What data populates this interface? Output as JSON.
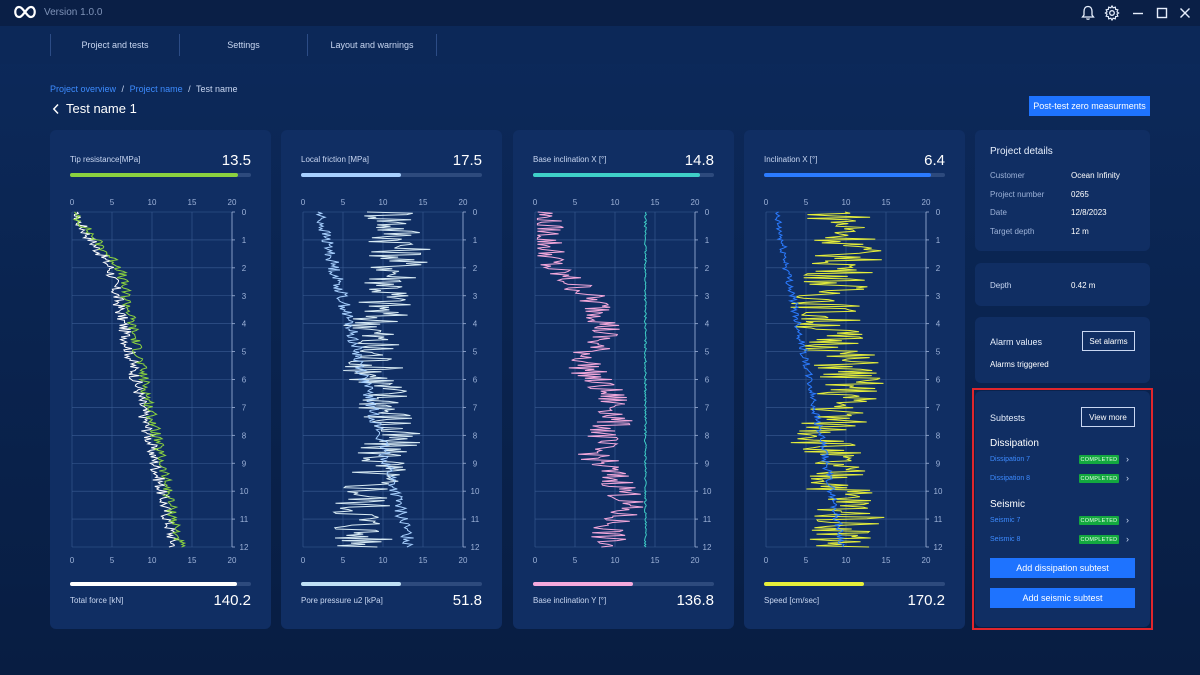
{
  "app": {
    "version": "Version 1.0.0"
  },
  "nav": {
    "items": [
      "Project and tests",
      "Settings",
      "Layout and warnings"
    ]
  },
  "breadcrumb": {
    "items": [
      "Project overview",
      "Project name",
      "Test name"
    ],
    "separator": "/"
  },
  "page": {
    "title": "Test name 1",
    "post_test_button": "Post-test zero measurments"
  },
  "charts": [
    {
      "top_label": "Tip resistance[MPa]",
      "top_value": "13.5",
      "top_color": "#8bd23f",
      "top_fill": 0.93,
      "bottom_label": "Total force [kN]",
      "bottom_value": "140.2",
      "bottom_color": "#ffffff",
      "bottom_fill": 0.92
    },
    {
      "top_label": "Local friction [MPa]",
      "top_value": "17.5",
      "top_color": "#a7d0ff",
      "top_fill": 0.55,
      "bottom_label": "Pore pressure u2 [kPa]",
      "bottom_value": "51.8",
      "bottom_color": "#bfe0f5",
      "bottom_fill": 0.55
    },
    {
      "top_label": "Base inclination X [°]",
      "top_value": "14.8",
      "top_color": "#3fd0c8",
      "top_fill": 0.92,
      "bottom_label": "Base inclination Y [°]",
      "bottom_value": "136.8",
      "bottom_color": "#f5a9dc",
      "bottom_fill": 0.55
    },
    {
      "top_label": "Inclination X [°]",
      "top_value": "6.4",
      "top_color": "#2b7bff",
      "top_fill": 0.92,
      "bottom_label": "Speed [cm/sec]",
      "bottom_value": "170.2",
      "bottom_color": "#e6ef3a",
      "bottom_fill": 0.55
    }
  ],
  "chart_data": {
    "type": "line",
    "x_ticks": [
      "0",
      "5",
      "10",
      "15",
      "20"
    ],
    "y_ticks": [
      "0",
      "1",
      "2",
      "3",
      "4",
      "5",
      "6",
      "7",
      "8",
      "9",
      "10",
      "11",
      "12"
    ],
    "xlim": [
      0,
      20
    ],
    "ylim": [
      0,
      12
    ],
    "grid": true,
    "series_colors": [
      [
        "#8bd23f",
        "#ffffff"
      ],
      [
        "#a7d0ff",
        "#d9ecf5"
      ],
      [
        "#3fd0c8",
        "#f5a9dc"
      ],
      [
        "#2b7bff",
        "#e6ef3a"
      ]
    ]
  },
  "project": {
    "title": "Project details",
    "rows": [
      {
        "key": "Customer",
        "value": "Ocean Infinity"
      },
      {
        "key": "Project number",
        "value": "0265"
      },
      {
        "key": "Date",
        "value": "12/8/2023"
      },
      {
        "key": "Target depth",
        "value": "12 m"
      }
    ]
  },
  "depth": {
    "key": "Depth",
    "value": "0.42 m"
  },
  "alarms": {
    "title": "Alarm values",
    "button": "Set alarms",
    "status": "Alarms triggered"
  },
  "subtests": {
    "title": "Subtests",
    "view_more": "View more",
    "groups": [
      {
        "name": "Dissipation",
        "items": [
          {
            "label": "Dissipation 7",
            "status": "COMPLETED"
          },
          {
            "label": "Dissipation 8",
            "status": "COMPLETED"
          }
        ]
      },
      {
        "name": "Seismic",
        "items": [
          {
            "label": "Seismic 7",
            "status": "COMPLETED"
          },
          {
            "label": "Seismic 8",
            "status": "COMPLETED"
          }
        ]
      }
    ],
    "add_dissipation": "Add dissipation subtest",
    "add_seismic": "Add seismic subtest"
  }
}
